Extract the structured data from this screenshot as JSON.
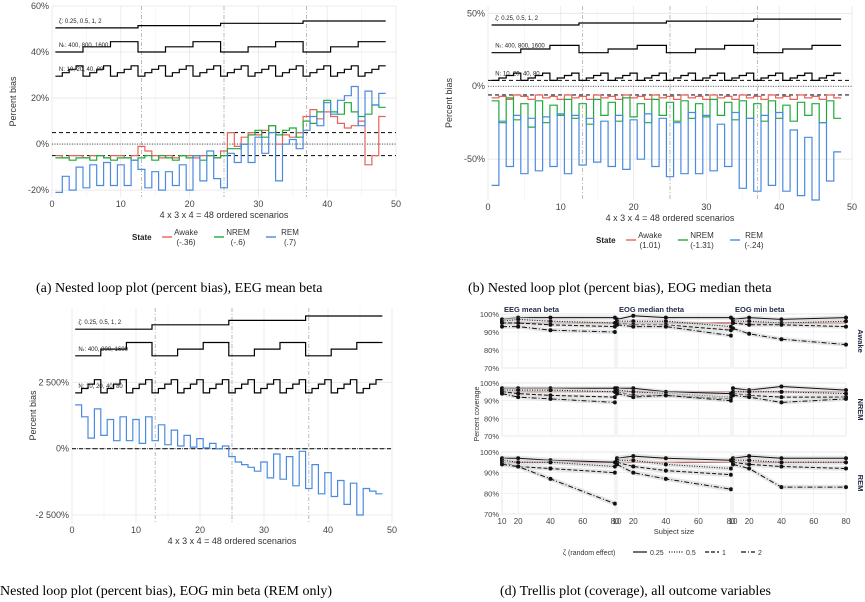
{
  "captions": {
    "a": "(a) Nested loop plot (percent bias), EEG mean beta",
    "b": "(b) Nested loop plot (percent bias), EOG median theta",
    "c": "Nested loop plot (percent bias), EOG min beta (REM only)",
    "d": "(d) Trellis plot (coverage), all outcome variables"
  },
  "loop_labels": {
    "zeta": "ζ: 0.25, 0.5, 1, 2",
    "nt": "Nₜ: 400, 800, 1600",
    "n": "N: 10, 20, 40, 80"
  },
  "colors": {
    "Awake": "#E8625A",
    "NREM": "#1FAA3A",
    "REM": "#4A8AE0",
    "ref": "#B5524B"
  },
  "chart_data": [
    {
      "type": "line",
      "id": "a",
      "xlabel": "4 x 3 x 4 = 48 ordered scenarios",
      "ylabel": "Percent bias",
      "xlim": [
        0,
        50
      ],
      "ylim": [
        -23,
        60
      ],
      "yticks": [
        -20,
        0,
        20,
        40,
        60
      ],
      "ytick_labels": [
        "-20%",
        "0%",
        "20%",
        "40%",
        "60%"
      ],
      "xticks": [
        0,
        10,
        20,
        30,
        40,
        50
      ],
      "xtick_labels": [
        "0",
        "10",
        "20",
        "30",
        "40",
        "50"
      ],
      "hlines": [
        5,
        -5
      ],
      "legend_title": "State",
      "legend": [
        {
          "name": "Awake",
          "value": "(-.36)"
        },
        {
          "name": "NREM",
          "value": "(-.6)"
        },
        {
          "name": "REM",
          "value": "(.7)"
        }
      ],
      "loops": {
        "zeta": [
          50.5,
          53.5
        ],
        "nt": [
          40,
          44.5
        ],
        "n": [
          29.5,
          34
        ]
      },
      "series": [
        {
          "name": "Awake",
          "values": [
            -5,
            -6,
            -5,
            -5,
            -6,
            -5,
            -5,
            -6,
            -5,
            -5,
            -6,
            -5,
            -1,
            -3,
            -5,
            -6,
            -5,
            -6,
            -5,
            -5,
            -6,
            -5,
            -5,
            -6,
            -3,
            5,
            -1,
            3,
            5,
            4,
            6,
            8,
            0,
            4,
            3,
            5,
            12,
            15,
            11,
            14,
            12,
            9,
            7,
            8,
            10,
            -9,
            -5,
            12
          ]
        },
        {
          "name": "NREM",
          "values": [
            -6,
            -6,
            -7,
            -6,
            -6,
            -7,
            -5,
            -6,
            -7,
            -6,
            -6,
            -7,
            -6,
            -5,
            -7,
            -5,
            -6,
            -7,
            -5,
            -6,
            -5,
            -7,
            -5,
            -6,
            -5,
            -2,
            -2,
            0,
            4,
            6,
            3,
            8,
            4,
            6,
            7,
            3,
            10,
            9,
            14,
            19,
            14,
            13,
            18,
            14,
            12,
            13,
            17,
            16
          ]
        },
        {
          "name": "REM",
          "values": [
            -21,
            -14,
            -20,
            -10,
            -19,
            -9,
            -18,
            -8,
            -18,
            -9,
            -18,
            -7,
            -11,
            -19,
            -12,
            -20,
            -12,
            -18,
            -9,
            -20,
            -5,
            -16,
            -3,
            -15,
            -19,
            -4,
            -8,
            0,
            -8,
            3,
            -4,
            5,
            -16,
            0,
            2,
            -2,
            6,
            12,
            8,
            18,
            13,
            19,
            21,
            25,
            8,
            23,
            17,
            22
          ]
        }
      ]
    },
    {
      "type": "line",
      "id": "b",
      "xlabel": "4 x 3 x 4 = 48 ordered scenarios",
      "ylabel": "Percent bias",
      "xlim": [
        0,
        50
      ],
      "ylim": [
        -78,
        55
      ],
      "yticks": [
        -50,
        0,
        50
      ],
      "ytick_labels": [
        "-50%",
        "0%",
        "50%"
      ],
      "xticks": [
        0,
        10,
        20,
        30,
        40,
        50
      ],
      "xtick_labels": [
        "0",
        "10",
        "20",
        "30",
        "40",
        "50"
      ],
      "hlines": [
        4,
        -6
      ],
      "legend_title": "State",
      "legend": [
        {
          "name": "Awake",
          "value": "(1.01)"
        },
        {
          "name": "NREM",
          "value": "(-1.31)"
        },
        {
          "name": "REM",
          "value": "(-.24)"
        }
      ],
      "loops": {
        "zeta": [
          42,
          46
        ],
        "nt": [
          23,
          28
        ],
        "n": [
          4,
          9
        ]
      },
      "series": [
        {
          "name": "Awake",
          "values": [
            -8,
            -7,
            -9,
            -6,
            -7,
            -9,
            -6,
            -8,
            -7,
            -9,
            -6,
            -8,
            -7,
            -9,
            -6,
            -8,
            -7,
            -9,
            -6,
            -8,
            -7,
            -9,
            -6,
            -8,
            -7,
            -9,
            -6,
            -8,
            -7,
            -9,
            -6,
            -8,
            -7,
            -9,
            -6,
            -8,
            -7,
            -9,
            -6,
            -8,
            -7,
            -9,
            -6,
            -8,
            -7,
            -9,
            -6,
            -8
          ]
        },
        {
          "name": "NREM",
          "values": [
            -10,
            -25,
            -8,
            -23,
            -12,
            -28,
            -10,
            -25,
            -13,
            -20,
            -9,
            -22,
            -12,
            -26,
            -9,
            -20,
            -11,
            -24,
            -8,
            -21,
            -12,
            -25,
            -9,
            -20,
            -11,
            -24,
            -10,
            -22,
            -12,
            -21,
            -9,
            -20,
            -11,
            -23,
            -10,
            -22,
            -12,
            -24,
            -10,
            -22,
            -13,
            -24,
            -11,
            -20,
            -12,
            -25,
            -10,
            -22
          ]
        },
        {
          "name": "REM",
          "values": [
            -68,
            -24,
            -55,
            -20,
            -60,
            -22,
            -58,
            -21,
            -55,
            -19,
            -60,
            -20,
            -54,
            -22,
            -52,
            -24,
            -55,
            -20,
            -57,
            -23,
            -50,
            -19,
            -55,
            -22,
            -62,
            -25,
            -60,
            -18,
            -60,
            -20,
            -58,
            -26,
            -55,
            -18,
            -70,
            -22,
            -72,
            -20,
            -68,
            -18,
            -72,
            -30,
            -75,
            -35,
            -78,
            -25,
            -65,
            -45
          ]
        }
      ]
    },
    {
      "type": "line",
      "id": "c",
      "xlabel": "4 x 3 x 4 = 48 ordered scenarios",
      "ylabel": "Percent bias",
      "xlim": [
        0,
        50
      ],
      "ylim": [
        -2800,
        5300
      ],
      "yticks": [
        -2500,
        0,
        2500
      ],
      "ytick_labels": [
        "-2 500%",
        "0%",
        "2 500%"
      ],
      "xticks": [
        0,
        10,
        20,
        30,
        40,
        50
      ],
      "xtick_labels": [
        "0",
        "10",
        "20",
        "30",
        "40",
        "50"
      ],
      "hlines": [
        0
      ],
      "loops": {
        "zeta": [
          4500,
          5000
        ],
        "nt": [
          3500,
          4000
        ],
        "n": [
          2100,
          2600
        ]
      },
      "series": [
        {
          "name": "REM",
          "values": [
            1650,
            1200,
            400,
            1500,
            500,
            1100,
            300,
            1200,
            300,
            1100,
            200,
            1200,
            300,
            900,
            150,
            700,
            100,
            500,
            60,
            380,
            30,
            200,
            -10,
            100,
            -300,
            -500,
            -600,
            -700,
            -850,
            -500,
            -1100,
            -200,
            -1150,
            -300,
            -1400,
            -100,
            -1500,
            -600,
            -1700,
            -900,
            -1800,
            -1200,
            -2100,
            -1300,
            -2500,
            -1500,
            -1600,
            -1700
          ]
        }
      ]
    },
    {
      "type": "line",
      "id": "d",
      "title": "Trellis plot (coverage)",
      "columns": [
        "EEG mean beta",
        "EOG median theta",
        "EOG min beta"
      ],
      "rows": [
        "Awake",
        "NREM",
        "REM"
      ],
      "xlabel": "Subject size",
      "ylabel": "Percent coverage",
      "x": [
        10,
        20,
        40,
        80
      ],
      "xtick_labels": [
        "10",
        "20",
        "40",
        "60",
        "80"
      ],
      "ylim": [
        70,
        100
      ],
      "ytick_labels": [
        "70%",
        "80%",
        "90%",
        "100%"
      ],
      "reference": 95,
      "legend_title": "ζ (random effect)",
      "legend": [
        "0.25",
        "0.5",
        "1",
        "2"
      ],
      "series": [
        {
          "row": "Awake",
          "col": 0,
          "name": "0.25",
          "values": [
            97,
            98,
            98,
            98
          ]
        },
        {
          "row": "Awake",
          "col": 0,
          "name": "0.5",
          "values": [
            96,
            97,
            96,
            95
          ]
        },
        {
          "row": "Awake",
          "col": 0,
          "name": "1",
          "values": [
            95,
            95,
            94,
            93
          ]
        },
        {
          "row": "Awake",
          "col": 0,
          "name": "2",
          "values": [
            93,
            93,
            91,
            90
          ]
        },
        {
          "row": "Awake",
          "col": 1,
          "name": "0.25",
          "values": [
            97,
            99,
            98,
            98
          ]
        },
        {
          "row": "Awake",
          "col": 1,
          "name": "0.5",
          "values": [
            96,
            96,
            96,
            93
          ]
        },
        {
          "row": "Awake",
          "col": 1,
          "name": "1",
          "values": [
            95,
            94,
            94,
            91
          ]
        },
        {
          "row": "Awake",
          "col": 1,
          "name": "2",
          "values": [
            94,
            93,
            93,
            88
          ]
        },
        {
          "row": "Awake",
          "col": 2,
          "name": "0.25",
          "values": [
            97,
            98,
            97,
            98
          ]
        },
        {
          "row": "Awake",
          "col": 2,
          "name": "0.5",
          "values": [
            96,
            96,
            95,
            96
          ]
        },
        {
          "row": "Awake",
          "col": 2,
          "name": "1",
          "values": [
            95,
            94,
            94,
            93
          ]
        },
        {
          "row": "Awake",
          "col": 2,
          "name": "2",
          "values": [
            92,
            89,
            86,
            83
          ]
        },
        {
          "row": "NREM",
          "col": 0,
          "name": "0.25",
          "values": [
            97,
            97,
            97,
            97
          ]
        },
        {
          "row": "NREM",
          "col": 0,
          "name": "0.5",
          "values": [
            96,
            96,
            96,
            95
          ]
        },
        {
          "row": "NREM",
          "col": 0,
          "name": "1",
          "values": [
            95,
            94,
            93,
            92
          ]
        },
        {
          "row": "NREM",
          "col": 0,
          "name": "2",
          "values": [
            94,
            92,
            91,
            89
          ]
        },
        {
          "row": "NREM",
          "col": 1,
          "name": "0.25",
          "values": [
            97,
            97,
            95,
            94
          ]
        },
        {
          "row": "NREM",
          "col": 1,
          "name": "0.5",
          "values": [
            96,
            95,
            94,
            92
          ]
        },
        {
          "row": "NREM",
          "col": 1,
          "name": "1",
          "values": [
            95,
            93,
            93,
            91
          ]
        },
        {
          "row": "NREM",
          "col": 1,
          "name": "2",
          "values": [
            94,
            92,
            93,
            90
          ]
        },
        {
          "row": "NREM",
          "col": 2,
          "name": "0.25",
          "values": [
            97,
            96,
            98,
            96
          ]
        },
        {
          "row": "NREM",
          "col": 2,
          "name": "0.5",
          "values": [
            95,
            95,
            95,
            94
          ]
        },
        {
          "row": "NREM",
          "col": 2,
          "name": "1",
          "values": [
            94,
            93,
            92,
            92
          ]
        },
        {
          "row": "NREM",
          "col": 2,
          "name": "2",
          "values": [
            93,
            92,
            89,
            91
          ]
        },
        {
          "row": "REM",
          "col": 0,
          "name": "0.25",
          "values": [
            97,
            97,
            96,
            95
          ]
        },
        {
          "row": "REM",
          "col": 0,
          "name": "0.5",
          "values": [
            96,
            95,
            95,
            93
          ]
        },
        {
          "row": "REM",
          "col": 0,
          "name": "1",
          "values": [
            95,
            93,
            92,
            90
          ]
        },
        {
          "row": "REM",
          "col": 0,
          "name": "2",
          "values": [
            94,
            93,
            87,
            75
          ]
        },
        {
          "row": "REM",
          "col": 1,
          "name": "0.25",
          "values": [
            97,
            98,
            97,
            96
          ]
        },
        {
          "row": "REM",
          "col": 1,
          "name": "0.5",
          "values": [
            96,
            96,
            94,
            92
          ]
        },
        {
          "row": "REM",
          "col": 1,
          "name": "1",
          "values": [
            95,
            93,
            91,
            89
          ]
        },
        {
          "row": "REM",
          "col": 1,
          "name": "2",
          "values": [
            94,
            90,
            87,
            82
          ]
        },
        {
          "row": "REM",
          "col": 2,
          "name": "0.25",
          "values": [
            97,
            98,
            97,
            97
          ]
        },
        {
          "row": "REM",
          "col": 2,
          "name": "0.5",
          "values": [
            96,
            96,
            95,
            95
          ]
        },
        {
          "row": "REM",
          "col": 2,
          "name": "1",
          "values": [
            95,
            94,
            93,
            92
          ]
        },
        {
          "row": "REM",
          "col": 2,
          "name": "2",
          "values": [
            94,
            92,
            83,
            83
          ]
        }
      ]
    }
  ]
}
